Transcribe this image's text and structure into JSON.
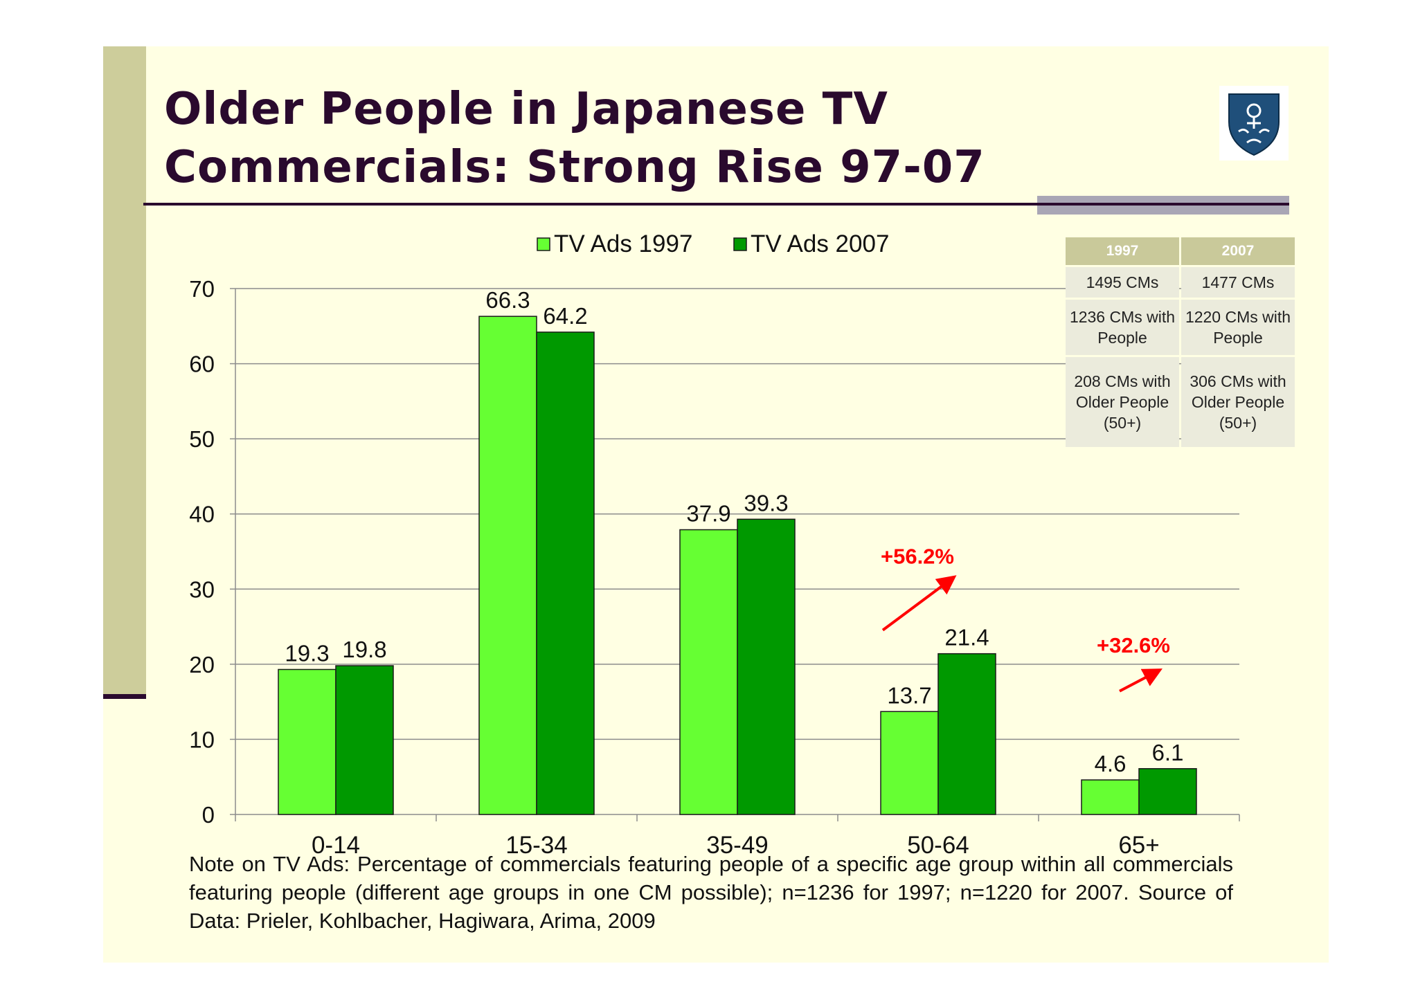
{
  "slide": {
    "title_line1": "Older People in Japanese TV",
    "title_line2": "Commercials: Strong Rise 97-07",
    "note": "Note on TV Ads: Percentage of commercials featuring people of a specific age group within all commercials featuring people (different age groups in one CM possible); n=1236 for 1997; n=1220 for 2007. Source of Data: Prieler, Kohlbacher, Hagiwara, Arima, 2009"
  },
  "colors": {
    "series_1997": "#66ff33",
    "series_2007": "#009900",
    "annotation": "#ff0000",
    "title": "#2a0a2e"
  },
  "chart_data": {
    "type": "bar",
    "title": "",
    "xlabel": "",
    "ylabel": "",
    "ylim": [
      0,
      70
    ],
    "yticks": [
      0,
      10,
      20,
      30,
      40,
      50,
      60,
      70
    ],
    "grid": true,
    "legend_position": "top",
    "categories": [
      "0-14",
      "15-34",
      "35-49",
      "50-64",
      "65+"
    ],
    "series": [
      {
        "name": "TV Ads 1997",
        "values": [
          19.3,
          66.3,
          37.9,
          13.7,
          4.6
        ],
        "labels": [
          "19.3",
          "66.3",
          "37.9",
          "13.7",
          "4.6"
        ]
      },
      {
        "name": "TV Ads 2007",
        "values": [
          19.8,
          64.2,
          39.3,
          21.4,
          6.1
        ],
        "labels": [
          "19.8",
          "64.2",
          "39.3",
          "21.4",
          "6.1"
        ]
      }
    ],
    "annotations": [
      {
        "text": "+56.2%",
        "category": "50-64"
      },
      {
        "text": "+32.6%",
        "category": "65+"
      }
    ]
  },
  "stats_table": {
    "headers": [
      "1997",
      "2007"
    ],
    "rows": [
      [
        "1495 CMs",
        "1477 CMs"
      ],
      [
        "1236 CMs with People",
        "1220 CMs with People"
      ],
      [
        "208 CMs with Older People (50+)",
        "306 CMs with Older People (50+)"
      ]
    ]
  }
}
